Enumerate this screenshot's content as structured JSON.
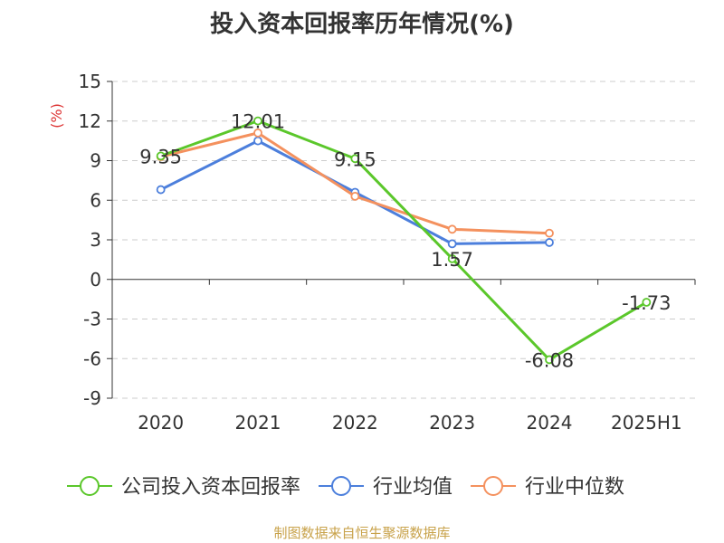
{
  "chart_data": {
    "type": "line",
    "title": "投入资本回报率历年情况(%)",
    "ylabel": "(%)",
    "categories": [
      "2020",
      "2021",
      "2022",
      "2023",
      "2024",
      "2025H1"
    ],
    "ylim": [
      -9,
      15
    ],
    "yticks": [
      15,
      12,
      9,
      6,
      3,
      0,
      -3,
      -6,
      -9
    ],
    "grid": true,
    "legend_position": "bottom",
    "series": [
      {
        "name": "公司投入资本回报率",
        "color": "#5bc72b",
        "values": [
          9.35,
          12.01,
          9.15,
          1.57,
          -6.08,
          -1.73
        ],
        "labels": [
          "9.35",
          "12.01",
          "9.15",
          "1.57",
          "-6.08",
          "-1.73"
        ]
      },
      {
        "name": "行业均值",
        "color": "#4c7fdc",
        "values": [
          6.8,
          10.5,
          6.6,
          2.7,
          2.8,
          null
        ]
      },
      {
        "name": "行业中位数",
        "color": "#f4915e",
        "values": [
          9.3,
          11.1,
          6.3,
          3.8,
          3.5,
          null
        ]
      }
    ]
  },
  "footer": {
    "source": "制图数据来自恒生聚源数据库"
  }
}
